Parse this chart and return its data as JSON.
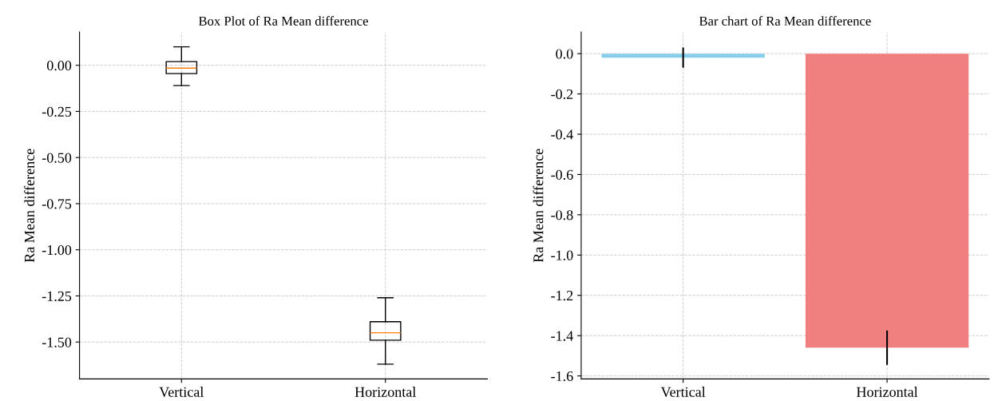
{
  "chart_data": [
    {
      "type": "box",
      "title": "Box Plot of Ra Mean difference",
      "ylabel": "Ra Mean difference",
      "categories": [
        "Vertical",
        "Horizontal"
      ],
      "boxes": [
        {
          "low": -0.11,
          "q1": -0.045,
          "median": -0.015,
          "q3": 0.02,
          "high": 0.1
        },
        {
          "low": -1.62,
          "q1": -1.49,
          "median": -1.45,
          "q3": -1.39,
          "high": -1.26
        }
      ],
      "ylim": [
        -1.7,
        0.18
      ],
      "yticks": [
        {
          "value": 0,
          "label": "0.00"
        },
        {
          "value": -0.25,
          "label": "-0.25"
        },
        {
          "value": -0.5,
          "label": "-0.50"
        },
        {
          "value": -0.75,
          "label": "-0.75"
        },
        {
          "value": -1.0,
          "label": "-1.00"
        },
        {
          "value": -1.25,
          "label": "-1.25"
        },
        {
          "value": -1.5,
          "label": "-1.50"
        }
      ],
      "grid": true
    },
    {
      "type": "bar",
      "title": "Bar chart of Ra Mean difference",
      "ylabel": "Ra Mean difference",
      "categories": [
        "Vertical",
        "Horizontal"
      ],
      "values": [
        -0.02,
        -1.46
      ],
      "colors": [
        "#87ceeb",
        "#f08080"
      ],
      "errors": [
        0.05,
        0.085
      ],
      "ylim": [
        -1.615,
        0.107
      ],
      "yticks": [
        {
          "value": 0,
          "label": "0.0"
        },
        {
          "value": -0.2,
          "label": "-0.2"
        },
        {
          "value": -0.4,
          "label": "-0.4"
        },
        {
          "value": -0.6,
          "label": "-0.6"
        },
        {
          "value": -0.8,
          "label": "-0.8"
        },
        {
          "value": -1.0,
          "label": "-1.0"
        },
        {
          "value": -1.2,
          "label": "-1.2"
        },
        {
          "value": -1.4,
          "label": "-1.4"
        },
        {
          "value": -1.6,
          "label": "-1.6"
        }
      ],
      "grid": true
    }
  ]
}
